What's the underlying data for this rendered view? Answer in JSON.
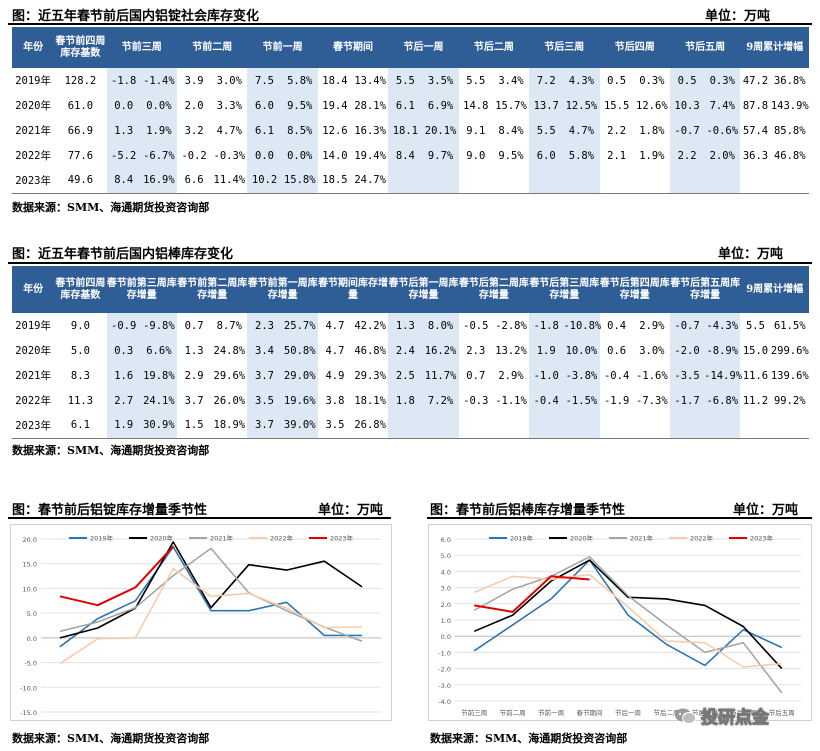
{
  "table1": {
    "title": "图：近五年春节前后国内铝锭社会库存变化",
    "unit": "单位：万吨",
    "headers": [
      "年份",
      "春节前四周库存基数",
      "节前三周",
      "节前二周",
      "节前一周",
      "春节期间",
      "节后一周",
      "节后二周",
      "节后三周",
      "节后四周",
      "节后五周",
      "9周累计增幅"
    ],
    "rows": [
      {
        "year": "2019年",
        "base": "128.2",
        "vals": [
          "-1.8",
          "-1.4%",
          "3.9",
          "3.0%",
          "7.5",
          "5.8%",
          "18.4",
          "13.4%",
          "5.5",
          "3.5%",
          "5.5",
          "3.4%",
          "7.2",
          "4.3%",
          "0.5",
          "0.3%",
          "0.5",
          "0.3%",
          "47.2",
          "36.8%"
        ]
      },
      {
        "year": "2020年",
        "base": "61.0",
        "vals": [
          "0.0",
          "0.0%",
          "2.0",
          "3.3%",
          "6.0",
          "9.5%",
          "19.4",
          "28.1%",
          "6.1",
          "6.9%",
          "14.8",
          "15.7%",
          "13.7",
          "12.5%",
          "15.5",
          "12.6%",
          "10.3",
          "7.4%",
          "87.8",
          "143.9%"
        ]
      },
      {
        "year": "2021年",
        "base": "66.9",
        "vals": [
          "1.3",
          "1.9%",
          "3.2",
          "4.7%",
          "6.1",
          "8.5%",
          "12.6",
          "16.3%",
          "18.1",
          "20.1%",
          "9.1",
          "8.4%",
          "5.5",
          "4.7%",
          "2.2",
          "1.8%",
          "-0.7",
          "-0.6%",
          "57.4",
          "85.8%"
        ]
      },
      {
        "year": "2022年",
        "base": "77.6",
        "vals": [
          "-5.2",
          "-6.7%",
          "-0.2",
          "-0.3%",
          "0.0",
          "0.0%",
          "14.0",
          "19.4%",
          "8.4",
          "9.7%",
          "9.0",
          "9.5%",
          "6.0",
          "5.8%",
          "2.1",
          "1.9%",
          "2.2",
          "2.0%",
          "36.3",
          "46.8%"
        ]
      },
      {
        "year": "2023年",
        "base": "49.6",
        "vals": [
          "8.4",
          "16.9%",
          "6.6",
          "11.4%",
          "10.2",
          "15.8%",
          "18.5",
          "24.7%",
          "",
          "",
          "",
          "",
          "",
          "",
          "",
          "",
          "",
          "",
          "",
          ""
        ]
      }
    ],
    "source": "数据来源：SMM、海通期货投资咨询部"
  },
  "table2": {
    "title": "图：近五年春节前后国内铝棒库存变化",
    "unit": "单位：万吨",
    "headers": [
      "年份",
      "春节前四周库存基数",
      "春节前第三周库存增量",
      "春节前第二周库存增量",
      "春节前第一周库存增量",
      "春节期间库存增量",
      "春节后第一周库存增量",
      "春节后第二周库存增量",
      "春节后第三周库存增量",
      "春节后第四周库存增量",
      "春节后第五周库存增量",
      "9周累计增幅"
    ],
    "rows": [
      {
        "year": "2019年",
        "base": "9.0",
        "vals": [
          "-0.9",
          "-9.8%",
          "0.7",
          "8.7%",
          "2.3",
          "25.7%",
          "4.7",
          "42.2%",
          "1.3",
          "8.0%",
          "-0.5",
          "-2.8%",
          "-1.8",
          "-10.8%",
          "0.4",
          "2.9%",
          "-0.7",
          "-4.3%",
          "5.5",
          "61.5%"
        ]
      },
      {
        "year": "2020年",
        "base": "5.0",
        "vals": [
          "0.3",
          "6.6%",
          "1.3",
          "24.8%",
          "3.4",
          "50.8%",
          "4.7",
          "46.8%",
          "2.4",
          "16.2%",
          "2.3",
          "13.2%",
          "1.9",
          "10.0%",
          "0.6",
          "3.0%",
          "-2.0",
          "-8.9%",
          "15.0",
          "299.6%"
        ]
      },
      {
        "year": "2021年",
        "base": "8.3",
        "vals": [
          "1.6",
          "19.8%",
          "2.9",
          "29.6%",
          "3.7",
          "29.0%",
          "4.9",
          "29.3%",
          "2.5",
          "11.7%",
          "0.7",
          "2.9%",
          "-1.0",
          "-3.8%",
          "-0.4",
          "-1.6%",
          "-3.5",
          "-14.9%",
          "11.6",
          "139.6%"
        ]
      },
      {
        "year": "2022年",
        "base": "11.3",
        "vals": [
          "2.7",
          "24.1%",
          "3.7",
          "26.0%",
          "3.5",
          "19.6%",
          "3.8",
          "18.1%",
          "1.8",
          "7.2%",
          "-0.3",
          "-1.1%",
          "-0.4",
          "-1.5%",
          "-1.9",
          "-7.3%",
          "-1.7",
          "-6.8%",
          "11.2",
          "99.2%"
        ]
      },
      {
        "year": "2023年",
        "base": "6.1",
        "vals": [
          "1.9",
          "30.9%",
          "1.5",
          "18.9%",
          "3.7",
          "39.0%",
          "3.5",
          "26.8%",
          "",
          "",
          "",
          "",
          "",
          "",
          "",
          "",
          "",
          "",
          "",
          ""
        ]
      }
    ],
    "source": "数据来源：SMM、海通期货投资咨询部"
  },
  "chart_left": {
    "title": "图：春节前后铝锭库存增量季节性",
    "unit": "单位：万吨",
    "source": "数据来源：SMM、海通期货投资咨询部"
  },
  "chart_right": {
    "title": "图：春节前后铝棒库存增量季节性",
    "unit": "单位：万吨",
    "source": "数据来源：SMM、海通期货投资咨询部"
  },
  "watermark": "投研点金",
  "colors": {
    "header_bg": "#2f5d96",
    "shade": "#dce9f5",
    "2019": "#2e75b6",
    "2020": "#000000",
    "2021": "#a5a5a5",
    "2022": "#f8cbad",
    "2023": "#e00000"
  },
  "chart_data": [
    {
      "type": "line",
      "title": "",
      "categories": [
        "节前三周",
        "节前二周",
        "节前一周",
        "春节期间",
        "节后一周",
        "节后二周",
        "节后三周",
        "节后四周",
        "节后五周"
      ],
      "ylim": [
        -15,
        20
      ],
      "yticks": [
        "20.0",
        "15.0",
        "10.0",
        "5.0",
        "0.0",
        "-5.0",
        "-10.0",
        "-15.0"
      ],
      "grid": true,
      "legend": "top",
      "series": [
        {
          "name": "2019年",
          "color": "#2e75b6",
          "values": [
            -1.8,
            3.9,
            7.5,
            18.4,
            5.5,
            5.5,
            7.2,
            0.5,
            0.5
          ]
        },
        {
          "name": "2020年",
          "color": "#000000",
          "values": [
            0.0,
            2.0,
            6.0,
            19.4,
            6.1,
            14.8,
            13.7,
            15.5,
            10.3
          ]
        },
        {
          "name": "2021年",
          "color": "#a5a5a5",
          "values": [
            1.3,
            3.2,
            6.1,
            12.6,
            18.1,
            9.1,
            5.5,
            2.2,
            -0.7
          ]
        },
        {
          "name": "2022年",
          "color": "#f8cbad",
          "values": [
            -5.2,
            -0.2,
            0.0,
            14.0,
            8.4,
            9.0,
            6.0,
            2.1,
            2.2
          ]
        },
        {
          "name": "2023年",
          "color": "#e00000",
          "values": [
            8.4,
            6.6,
            10.2,
            18.5,
            null,
            null,
            null,
            null,
            null
          ]
        }
      ]
    },
    {
      "type": "line",
      "title": "",
      "categories": [
        "节前三周",
        "节前二周",
        "节前一周",
        "春节期间",
        "节后一周",
        "节后二周",
        "节后三周",
        "节后四周",
        "节后五周"
      ],
      "ylim": [
        -4,
        6
      ],
      "yticks": [
        "6.0",
        "5.0",
        "4.0",
        "3.0",
        "2.0",
        "1.0",
        "0.0",
        "-1.0",
        "-2.0",
        "-3.0",
        "-4.0"
      ],
      "grid": true,
      "legend": "top",
      "series": [
        {
          "name": "2019年",
          "color": "#2e75b6",
          "values": [
            -0.9,
            0.7,
            2.3,
            4.7,
            1.3,
            -0.5,
            -1.8,
            0.4,
            -0.7
          ]
        },
        {
          "name": "2020年",
          "color": "#000000",
          "values": [
            0.3,
            1.3,
            3.4,
            4.7,
            2.4,
            2.3,
            1.9,
            0.6,
            -2.0
          ]
        },
        {
          "name": "2021年",
          "color": "#a5a5a5",
          "values": [
            1.6,
            2.9,
            3.7,
            4.9,
            2.5,
            0.7,
            -1.0,
            -0.4,
            -3.5
          ]
        },
        {
          "name": "2022年",
          "color": "#f8cbad",
          "values": [
            2.7,
            3.7,
            3.5,
            3.8,
            1.8,
            -0.3,
            -0.4,
            -1.9,
            -1.7
          ]
        },
        {
          "name": "2023年",
          "color": "#e00000",
          "values": [
            1.9,
            1.5,
            3.7,
            3.5,
            null,
            null,
            null,
            null,
            null
          ]
        }
      ]
    }
  ]
}
